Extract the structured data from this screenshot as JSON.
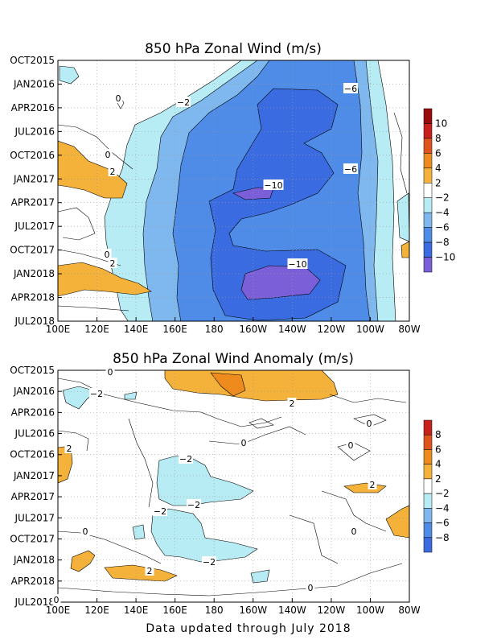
{
  "footer": "Data updated through July 2018",
  "colors": {
    "pos4": "#f5b23a",
    "pos6": "#ef8a1d",
    "pos8": "#e0531c",
    "pos10": "#c8201a",
    "pos12": "#9a0b0b",
    "neg2": "#b8ecf5",
    "neg4": "#7fb8ef",
    "neg6": "#4f8ce8",
    "neg8": "#3a6be0",
    "neg10": "#7a5fd8"
  },
  "chart_data": [
    {
      "type": "heatmap",
      "title": "850 hPa Zonal Wind (m/s)",
      "x_ticks": [
        "100E",
        "120E",
        "140E",
        "160E",
        "180",
        "160W",
        "140W",
        "120W",
        "100W",
        "80W"
      ],
      "y_ticks": [
        "OCT2015",
        "JAN2016",
        "APR2016",
        "JUL2016",
        "OCT2016",
        "JAN2017",
        "APR2017",
        "JUL2017",
        "OCT2017",
        "JAN2018",
        "APR2018",
        "JUL2018"
      ],
      "colorbar": {
        "labels": [
          "10",
          "8",
          "6",
          "4",
          "2",
          "−2",
          "−4",
          "−6",
          "−8",
          "−10"
        ]
      },
      "contour_labels": [
        {
          "text": "−6"
        },
        {
          "text": "−2"
        },
        {
          "text": "0"
        },
        {
          "text": "0"
        },
        {
          "text": "2"
        },
        {
          "text": "−6"
        },
        {
          "text": "−10"
        },
        {
          "text": "0"
        },
        {
          "text": "2"
        },
        {
          "text": "−10"
        }
      ],
      "units": "m/s",
      "grid": true
    },
    {
      "type": "heatmap",
      "title": "850 hPa Zonal Wind Anomaly (m/s)",
      "x_ticks": [
        "100E",
        "120E",
        "140E",
        "160E",
        "180",
        "160W",
        "140W",
        "120W",
        "100W",
        "80W"
      ],
      "y_ticks": [
        "OCT2015",
        "JAN2016",
        "APR2016",
        "JUL2016",
        "OCT2016",
        "JAN2017",
        "APR2017",
        "JUL2017",
        "OCT2017",
        "JAN2018",
        "APR2018",
        "JUL2018"
      ],
      "colorbar": {
        "labels": [
          "8",
          "6",
          "4",
          "2",
          "−2",
          "−4",
          "−6",
          "−8"
        ]
      },
      "contour_labels": [
        {
          "text": "−2"
        },
        {
          "text": "0"
        },
        {
          "text": "2"
        },
        {
          "text": "0"
        },
        {
          "text": "0"
        },
        {
          "text": "2"
        },
        {
          "text": "−2"
        },
        {
          "text": "0"
        },
        {
          "text": "−2"
        },
        {
          "text": "−2"
        },
        {
          "text": "2"
        },
        {
          "text": "0"
        },
        {
          "text": "−2"
        },
        {
          "text": "0"
        },
        {
          "text": "2"
        },
        {
          "text": "0"
        },
        {
          "text": "0"
        }
      ],
      "units": "m/s",
      "grid": true
    }
  ]
}
